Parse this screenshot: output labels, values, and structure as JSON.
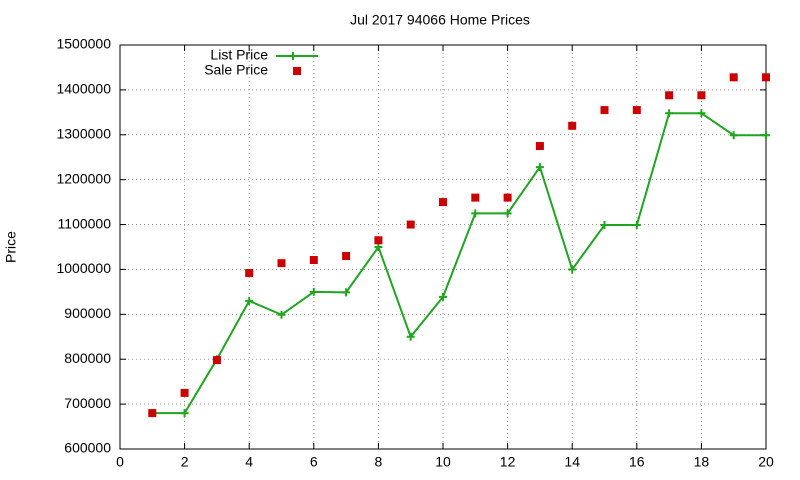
{
  "chart_data": {
    "type": "line",
    "title": "Jul 2017 94066 Home Prices",
    "y_label": "Price",
    "x": [
      1,
      2,
      3,
      4,
      5,
      6,
      7,
      8,
      9,
      10,
      11,
      12,
      13,
      14,
      15,
      16,
      17,
      18,
      19,
      20
    ],
    "series": [
      {
        "name": "List Price",
        "color": "#1fa51f",
        "style": "line",
        "values": [
          680000,
          680000,
          800000,
          930000,
          899000,
          950000,
          949000,
          1050000,
          850000,
          939000,
          1125000,
          1125000,
          1228000,
          1000000,
          1099000,
          1099000,
          1348000,
          1348000,
          1299000,
          1299000
        ]
      },
      {
        "name": "Sale Price",
        "color": "#cc0000",
        "style": "points",
        "values": [
          680000,
          725000,
          798000,
          992000,
          1014000,
          1021000,
          1030000,
          1065000,
          1100000,
          1150000,
          1160000,
          1160000,
          1275000,
          1320000,
          1355000,
          1355000,
          1388000,
          1388000,
          1428000,
          1428000
        ]
      }
    ],
    "xlim": [
      0,
      20
    ],
    "xticks": [
      0,
      2,
      4,
      6,
      8,
      10,
      12,
      14,
      16,
      18,
      20
    ],
    "ylim": [
      600000,
      1500000
    ],
    "yticks": [
      600000,
      700000,
      800000,
      900000,
      1000000,
      1100000,
      1200000,
      1300000,
      1400000,
      1500000
    ],
    "grid": true,
    "legend": "top-left"
  }
}
